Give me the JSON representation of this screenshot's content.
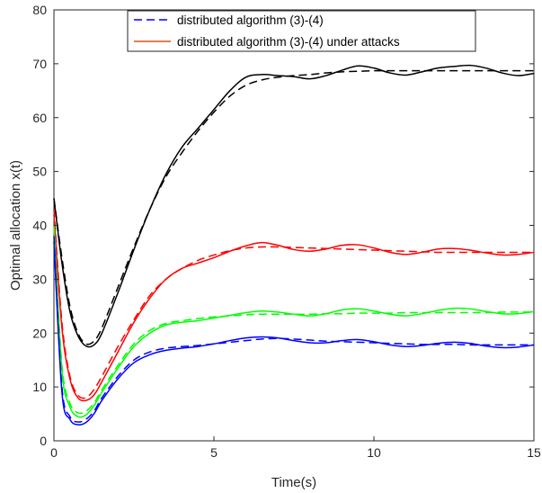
{
  "chart_data": {
    "type": "line",
    "xlabel": "Time(s)",
    "ylabel": "Optimal allocation x(t)",
    "xlim": [
      0,
      15
    ],
    "ylim": [
      0,
      80
    ],
    "xticks": [
      0,
      5,
      10,
      15
    ],
    "yticks": [
      0,
      10,
      20,
      30,
      40,
      50,
      60,
      70,
      80
    ],
    "grid": false,
    "legend_position": "top-center",
    "legend": [
      {
        "label": "distributed algorithm (3)-(4)",
        "color": "#0000ff",
        "style": "dashed"
      },
      {
        "label": "distributed algorithm (3)-(4) under attacks",
        "color": "#d95319",
        "style": "solid"
      }
    ],
    "x": [
      0,
      0.25,
      0.5,
      0.75,
      1,
      1.25,
      1.5,
      2,
      2.5,
      3,
      3.5,
      4,
      4.5,
      5,
      5.5,
      6,
      6.5,
      7,
      7.5,
      8,
      8.5,
      9,
      9.5,
      10,
      10.5,
      11,
      11.5,
      12,
      12.5,
      13,
      13.5,
      14,
      14.5,
      15
    ],
    "series": [
      {
        "color": "#000000",
        "style": "dashed",
        "values": [
          45,
          34,
          25,
          20,
          18,
          18.5,
          21,
          28.5,
          36,
          43,
          49,
          53.5,
          57.5,
          61,
          64,
          66,
          67,
          67.5,
          67.8,
          68,
          68.3,
          68.5,
          68.6,
          68.7,
          68.7,
          68.7,
          68.7,
          68.7,
          68.7,
          68.7,
          68.7,
          68.7,
          68.7,
          68.7
        ]
      },
      {
        "color": "#000000",
        "style": "solid",
        "values": [
          45,
          33,
          24,
          19.5,
          17.6,
          17.8,
          20,
          27.5,
          35.5,
          43,
          49.5,
          54.5,
          58,
          61.5,
          65,
          67.5,
          68,
          67.8,
          67.6,
          67.2,
          67.8,
          68.8,
          69.6,
          69.2,
          68.3,
          67.9,
          68.5,
          69.2,
          69.5,
          69.7,
          69.2,
          68.3,
          67.8,
          68.2
        ]
      },
      {
        "color": "#ff0000",
        "style": "dashed",
        "values": [
          43,
          22,
          12,
          8.5,
          8,
          9.5,
          12,
          17.5,
          22.5,
          27,
          30,
          32,
          33.5,
          34.5,
          35.3,
          35.8,
          36,
          36,
          35.9,
          35.8,
          35.7,
          35.6,
          35.5,
          35.4,
          35.3,
          35.2,
          35.1,
          35,
          35,
          35,
          35,
          35,
          35,
          35
        ]
      },
      {
        "color": "#ff0000",
        "style": "solid",
        "values": [
          42,
          21,
          11.5,
          8,
          7.5,
          8.5,
          11,
          16.5,
          22,
          26.5,
          30,
          32,
          33,
          34,
          35.2,
          36.2,
          36.8,
          36.3,
          35.5,
          35.2,
          35.6,
          36.3,
          36.4,
          35.8,
          35,
          34.6,
          35,
          35.6,
          35.7,
          35.4,
          34.9,
          34.5,
          34.6,
          35
        ]
      },
      {
        "color": "#00ff00",
        "style": "dashed",
        "values": [
          40,
          14,
          7,
          5.2,
          5.5,
          7,
          9.5,
          14,
          18,
          20.5,
          21.8,
          22.3,
          22.7,
          23,
          23.2,
          23.4,
          23.5,
          23.5,
          23.5,
          23.5,
          23.6,
          23.6,
          23.7,
          23.7,
          23.7,
          23.8,
          23.8,
          23.8,
          23.8,
          23.8,
          23.8,
          23.9,
          23.9,
          23.9
        ]
      },
      {
        "color": "#00ff00",
        "style": "solid",
        "values": [
          40,
          13,
          6.3,
          4.5,
          4.8,
          6.5,
          9,
          13.5,
          17.5,
          20,
          21.5,
          22,
          22.3,
          22.8,
          23.3,
          23.8,
          24.1,
          23.9,
          23.5,
          23.2,
          23.6,
          24.3,
          24.5,
          24.1,
          23.5,
          23.2,
          23.6,
          24.2,
          24.6,
          24.5,
          24,
          23.6,
          23.6,
          24
        ]
      },
      {
        "color": "#0000ff",
        "style": "dashed",
        "values": [
          38,
          10,
          4.5,
          3.5,
          4,
          5.5,
          8,
          12,
          15,
          16.5,
          17.2,
          17.5,
          17.7,
          18,
          18.3,
          18.6,
          18.9,
          19,
          18.9,
          18.7,
          18.5,
          18.4,
          18.3,
          18.2,
          18.1,
          18,
          17.9,
          17.9,
          17.9,
          17.8,
          17.8,
          17.8,
          17.8,
          17.8
        ]
      },
      {
        "color": "#0000ff",
        "style": "solid",
        "values": [
          37,
          9,
          4,
          3,
          3.4,
          5,
          7.5,
          11.5,
          14.5,
          16,
          16.8,
          17.2,
          17.5,
          18,
          18.6,
          19.1,
          19.3,
          19.1,
          18.6,
          18.2,
          18.2,
          18.6,
          18.8,
          18.4,
          17.8,
          17.5,
          17.7,
          18.1,
          18.3,
          18.1,
          17.6,
          17.3,
          17.4,
          17.8
        ]
      }
    ]
  }
}
